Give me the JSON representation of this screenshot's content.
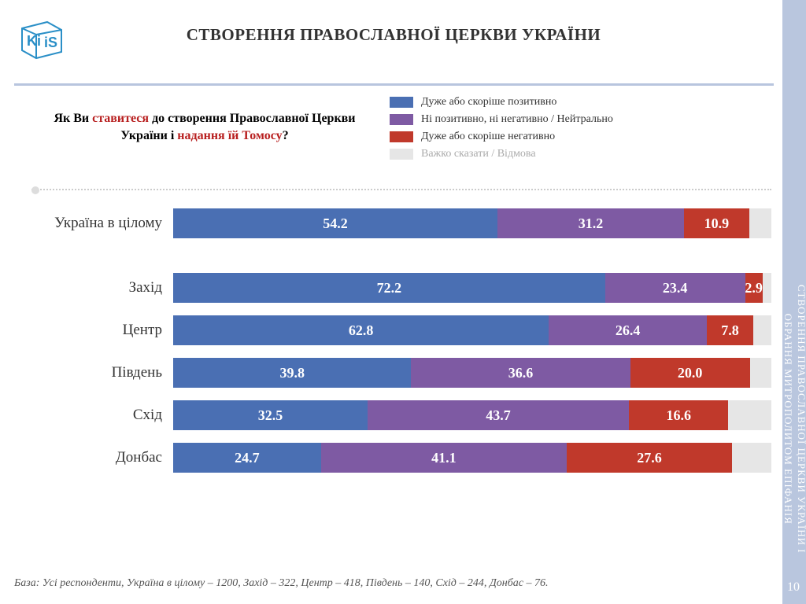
{
  "title": "СТВОРЕННЯ ПРАВОСЛАВНОЇ ЦЕРКВИ УКРАЇНИ",
  "title_fontsize": 21,
  "title_color": "#333333",
  "question": {
    "prefix": "Як Ви ",
    "red1": "ставитеся",
    "mid": " до створення Православної Церкви України і ",
    "red2": "надання їй Томосу",
    "suffix": "?",
    "fontsize": 16
  },
  "legend": {
    "items": [
      {
        "label": "Дуже або скоріше позитивно",
        "color": "#4a6fb3"
      },
      {
        "label": "Ні позитивно, ні негативно / Нейтрально",
        "color": "#7e5aa3"
      },
      {
        "label": "Дуже або скоріше негативно",
        "color": "#c0392b"
      },
      {
        "label": "Важко сказати / Відмова",
        "color": "#e6e6e6",
        "text_color": "#aaaaaa"
      }
    ]
  },
  "chart": {
    "type": "stacked-bar",
    "value_fontsize": 18,
    "value_color": "#ffffff",
    "label_fontsize": 19,
    "label_color": "#333333",
    "colors": [
      "#4a6fb3",
      "#7e5aa3",
      "#c0392b",
      "#e6e6e6"
    ],
    "rows": [
      {
        "label": "Україна в цілому",
        "values": [
          54.2,
          31.2,
          10.9,
          3.7
        ],
        "show": [
          true,
          true,
          true,
          false
        ],
        "group": 0
      },
      {
        "label": "Захід",
        "values": [
          72.2,
          23.4,
          2.9,
          1.5
        ],
        "show": [
          true,
          true,
          true,
          false
        ],
        "group": 1
      },
      {
        "label": "Центр",
        "values": [
          62.8,
          26.4,
          7.8,
          3.0
        ],
        "show": [
          true,
          true,
          true,
          false
        ],
        "group": 1
      },
      {
        "label": "Південь",
        "values": [
          39.8,
          36.6,
          20.0,
          3.6
        ],
        "show": [
          true,
          true,
          true,
          false
        ],
        "group": 1
      },
      {
        "label": "Схід",
        "values": [
          32.5,
          43.7,
          16.6,
          7.2
        ],
        "show": [
          true,
          true,
          true,
          false
        ],
        "group": 1
      },
      {
        "label": "Донбас",
        "values": [
          24.7,
          41.1,
          27.6,
          6.6
        ],
        "show": [
          true,
          true,
          true,
          false
        ],
        "group": 1
      }
    ]
  },
  "footnote": "База: Усі респонденти, Україна в цілому – 1200, Захід – 322, Центр – 418, Південь – 140, Схід – 244, Донбас – 76.",
  "side_text_line1": "СТВОРЕННЯ ПРАВОСЛАВНОЇ ЦЕРКВИ УКРАЇНИ І",
  "side_text_line2": "ОБРАННЯ МИТРОПОЛИТОМ ЕПІФАНІЯ",
  "side_band_color": "#b9c6de",
  "page_number": "10",
  "logo_color": "#2a8fc7"
}
